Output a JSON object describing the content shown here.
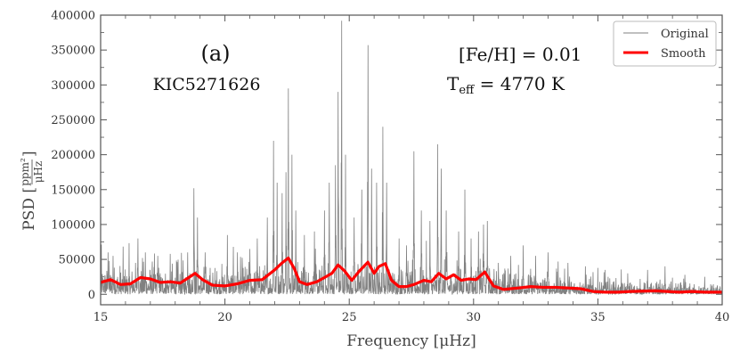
{
  "chart_data": {
    "type": "line",
    "title": "",
    "xlabel": "Frequency [μHz]",
    "ylabel_prefix": "PSD [",
    "ylabel_numerator": "ppm²",
    "ylabel_denominator": "μHz",
    "ylabel_suffix": "]",
    "xlim": [
      15,
      40
    ],
    "ylim": [
      -15000,
      400000
    ],
    "x_ticks": [
      15,
      20,
      25,
      30,
      35,
      40
    ],
    "x_tick_labels": [
      "15",
      "20",
      "25",
      "30",
      "35",
      "40"
    ],
    "y_ticks": [
      0,
      50000,
      100000,
      150000,
      200000,
      250000,
      300000,
      350000,
      400000
    ],
    "y_tick_labels": [
      "0",
      "50000",
      "100000",
      "150000",
      "200000",
      "250000",
      "300000",
      "350000",
      "400000"
    ],
    "legend_position": "top-right",
    "annotations": {
      "panel": "(a)",
      "star": "KIC5271626",
      "feh": "[Fe/H] = 0.01",
      "teff_base": "T",
      "teff_sub": "eff",
      "teff_rest": " = 4770 K"
    },
    "series": [
      {
        "name": "Original",
        "color": "#808080",
        "noise_baseline": [
          [
            15,
            15000
          ],
          [
            20,
            13000
          ],
          [
            25,
            14000
          ],
          [
            30,
            13000
          ],
          [
            33,
            10000
          ],
          [
            36,
            6000
          ],
          [
            40,
            4000
          ]
        ],
        "peaks": [
          [
            15.3,
            60000
          ],
          [
            15.5,
            55000
          ],
          [
            16.5,
            80000
          ],
          [
            16.8,
            60000
          ],
          [
            17.3,
            55000
          ],
          [
            17.8,
            50000
          ],
          [
            18.5,
            60000
          ],
          [
            18.75,
            152000
          ],
          [
            18.9,
            110000
          ],
          [
            19.2,
            60000
          ],
          [
            20.1,
            85000
          ],
          [
            20.5,
            60000
          ],
          [
            21.0,
            65000
          ],
          [
            21.3,
            80000
          ],
          [
            21.7,
            110000
          ],
          [
            21.95,
            220000
          ],
          [
            22.1,
            160000
          ],
          [
            22.3,
            145000
          ],
          [
            22.45,
            175000
          ],
          [
            22.55,
            295000
          ],
          [
            22.7,
            200000
          ],
          [
            22.85,
            120000
          ],
          [
            23.2,
            85000
          ],
          [
            23.6,
            90000
          ],
          [
            24.0,
            120000
          ],
          [
            24.2,
            160000
          ],
          [
            24.45,
            185000
          ],
          [
            24.55,
            290000
          ],
          [
            24.7,
            392000
          ],
          [
            24.85,
            200000
          ],
          [
            25.2,
            110000
          ],
          [
            25.5,
            150000
          ],
          [
            25.75,
            357000
          ],
          [
            25.9,
            180000
          ],
          [
            26.1,
            160000
          ],
          [
            26.35,
            240000
          ],
          [
            26.5,
            160000
          ],
          [
            27.0,
            80000
          ],
          [
            27.3,
            70000
          ],
          [
            27.6,
            205000
          ],
          [
            27.9,
            120000
          ],
          [
            28.25,
            105000
          ],
          [
            28.55,
            215000
          ],
          [
            28.7,
            180000
          ],
          [
            28.9,
            120000
          ],
          [
            29.4,
            90000
          ],
          [
            29.65,
            150000
          ],
          [
            29.9,
            80000
          ],
          [
            30.2,
            90000
          ],
          [
            30.4,
            100000
          ],
          [
            30.55,
            105000
          ],
          [
            31.0,
            45000
          ],
          [
            31.5,
            55000
          ],
          [
            32.0,
            70000
          ],
          [
            32.5,
            55000
          ],
          [
            33.0,
            60000
          ],
          [
            33.8,
            45000
          ],
          [
            34.5,
            40000
          ],
          [
            35.3,
            35000
          ],
          [
            36.2,
            30000
          ],
          [
            37.0,
            35000
          ],
          [
            37.7,
            40000
          ],
          [
            38.5,
            28000
          ],
          [
            39.3,
            25000
          ]
        ]
      },
      {
        "name": "Smooth",
        "color": "#ff0000",
        "x": [
          15,
          15.4,
          15.8,
          16.2,
          16.6,
          17.0,
          17.4,
          17.8,
          18.2,
          18.5,
          18.8,
          19.1,
          19.5,
          20.0,
          20.5,
          21.0,
          21.5,
          22.0,
          22.3,
          22.55,
          22.8,
          23.0,
          23.3,
          23.7,
          24.0,
          24.3,
          24.55,
          24.8,
          25.1,
          25.4,
          25.75,
          26.0,
          26.2,
          26.45,
          26.7,
          27.0,
          27.3,
          27.6,
          28.0,
          28.3,
          28.6,
          28.9,
          29.2,
          29.5,
          29.8,
          30.1,
          30.45,
          30.8,
          31.2,
          31.8,
          32.3,
          32.8,
          33.3,
          33.8,
          34.3,
          34.8,
          35.3,
          35.8,
          36.3,
          36.8,
          37.3,
          37.8,
          38.3,
          38.8,
          39.3,
          40
        ],
        "y": [
          17000,
          21000,
          14000,
          15000,
          24000,
          22000,
          17000,
          18000,
          16000,
          23000,
          30000,
          21000,
          13000,
          12000,
          15000,
          20000,
          21000,
          35000,
          45000,
          52000,
          36000,
          18000,
          14000,
          18000,
          24000,
          30000,
          42000,
          34000,
          20000,
          33000,
          46000,
          30000,
          40000,
          44000,
          20000,
          11000,
          11000,
          14000,
          20000,
          18000,
          30000,
          22000,
          28000,
          20000,
          22000,
          21000,
          32000,
          12000,
          7000,
          9000,
          11000,
          10000,
          10000,
          9000,
          8000,
          4000,
          3000,
          3000,
          4000,
          4500,
          5000,
          4000,
          3000,
          4000,
          3000,
          3000
        ]
      }
    ]
  }
}
